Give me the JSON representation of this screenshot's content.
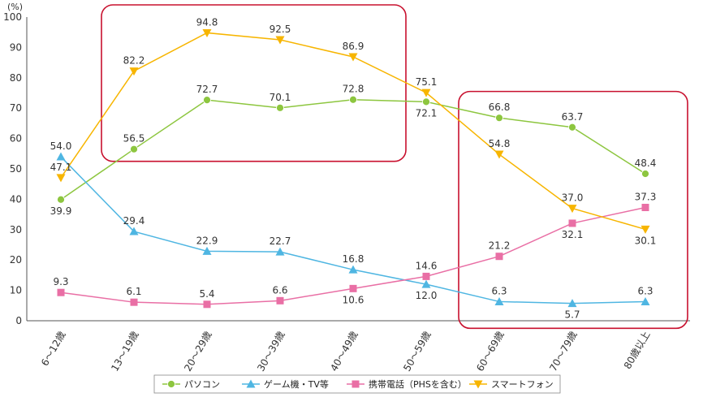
{
  "chart_data": {
    "type": "line",
    "y_unit": "(%)",
    "ylim": [
      0,
      100
    ],
    "yticks": [
      0,
      10,
      20,
      30,
      40,
      50,
      60,
      70,
      80,
      90,
      100
    ],
    "grid": false,
    "legend_position": "bottom",
    "categories": [
      "6～12歳",
      "13～19歳",
      "20～29歳",
      "30～39歳",
      "40～49歳",
      "50～59歳",
      "60～69歳",
      "70～79歳",
      "80歳以上"
    ],
    "series": [
      {
        "name": "パソコン",
        "marker": "circle",
        "color": "#8DC63F",
        "values": [
          39.9,
          56.5,
          72.7,
          70.1,
          72.8,
          72.1,
          66.8,
          63.7,
          48.4
        ]
      },
      {
        "name": "ゲーム機・TV等",
        "marker": "triangle-up",
        "color": "#4FB6E2",
        "values": [
          54.0,
          29.4,
          22.9,
          22.7,
          16.8,
          12.0,
          6.3,
          5.7,
          6.3
        ]
      },
      {
        "name": "携帯電話（PHSを含む）",
        "marker": "square",
        "color": "#E96FA5",
        "values": [
          9.3,
          6.1,
          5.4,
          6.6,
          10.6,
          14.6,
          21.2,
          32.1,
          37.3
        ]
      },
      {
        "name": "スマートフォン",
        "marker": "triangle-down",
        "color": "#F7B500",
        "values": [
          47.1,
          82.2,
          94.8,
          92.5,
          86.9,
          75.1,
          54.8,
          37.0,
          30.1
        ]
      }
    ],
    "highlight_color": "#C8102E"
  }
}
